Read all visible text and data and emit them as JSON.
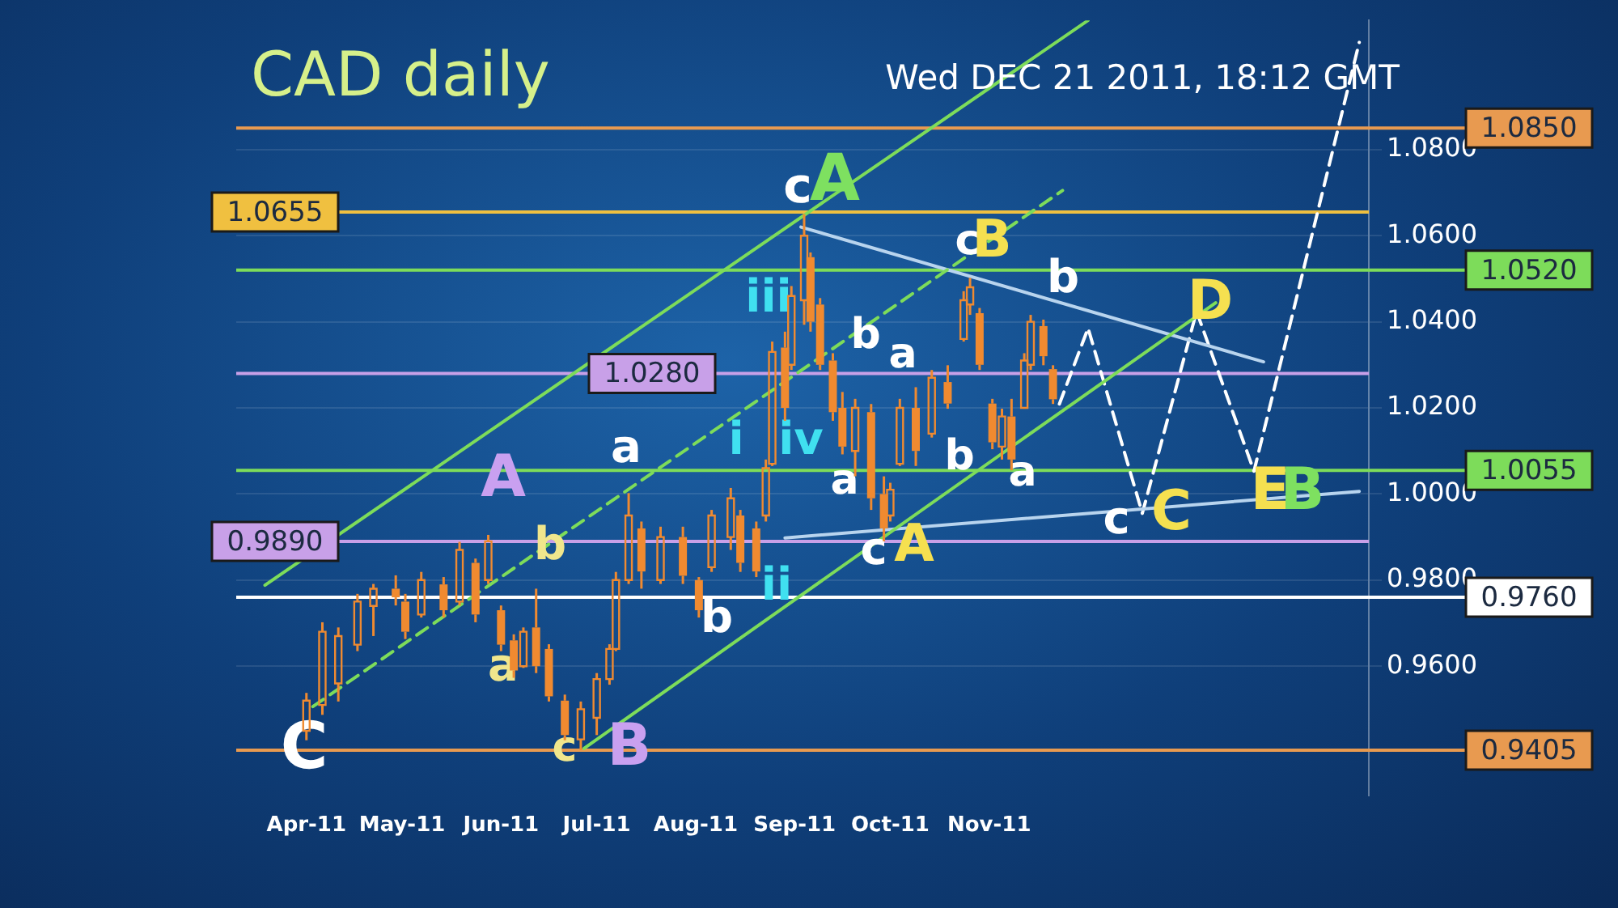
{
  "chart_data": {
    "type": "candlestick",
    "title": "CAD daily",
    "subtitle": "Wed DEC 21 2011, 18:12 GMT",
    "color": "#f08a30",
    "x": [
      "2011-04-01",
      "2011-04-06",
      "2011-04-11",
      "2011-04-17",
      "2011-04-22",
      "2011-04-29",
      "2011-05-02",
      "2011-05-07",
      "2011-05-14",
      "2011-05-19",
      "2011-05-24",
      "2011-05-28",
      "2011-06-01",
      "2011-06-05",
      "2011-06-08",
      "2011-06-12",
      "2011-06-16",
      "2011-06-21",
      "2011-06-26",
      "2011-07-01",
      "2011-07-05",
      "2011-07-07",
      "2011-07-11",
      "2011-07-15",
      "2011-07-21",
      "2011-07-28",
      "2011-08-02",
      "2011-08-06",
      "2011-08-12",
      "2011-08-15",
      "2011-08-20",
      "2011-08-23",
      "2011-08-25",
      "2011-08-29",
      "2011-08-31",
      "2011-09-04",
      "2011-09-06",
      "2011-09-09",
      "2011-09-13",
      "2011-09-16",
      "2011-09-20",
      "2011-09-25",
      "2011-09-29",
      "2011-10-01",
      "2011-10-04",
      "2011-10-09",
      "2011-10-14",
      "2011-10-19",
      "2011-10-24",
      "2011-10-26",
      "2011-10-29",
      "2011-11-02",
      "2011-11-05",
      "2011-11-08",
      "2011-11-12",
      "2011-11-14",
      "2011-11-18",
      "2011-11-21"
    ],
    "ohlc": [
      [
        0.945,
        0.9538,
        0.9428,
        0.952
      ],
      [
        0.951,
        0.9702,
        0.9487,
        0.968
      ],
      [
        0.956,
        0.969,
        0.9518,
        0.967
      ],
      [
        0.965,
        0.9768,
        0.9635,
        0.975
      ],
      [
        0.974,
        0.9791,
        0.967,
        0.978
      ],
      [
        0.978,
        0.9811,
        0.9741,
        0.976
      ],
      [
        0.975,
        0.9768,
        0.9663,
        0.968
      ],
      [
        0.972,
        0.9819,
        0.9713,
        0.98
      ],
      [
        0.979,
        0.9807,
        0.9713,
        0.973
      ],
      [
        0.975,
        0.9889,
        0.9741,
        0.987
      ],
      [
        0.984,
        0.985,
        0.9702,
        0.972
      ],
      [
        0.98,
        0.9905,
        0.9791,
        0.989
      ],
      [
        0.973,
        0.9741,
        0.9635,
        0.965
      ],
      [
        0.966,
        0.9674,
        0.9573,
        0.959
      ],
      [
        0.96,
        0.969,
        0.9596,
        0.968
      ],
      [
        0.969,
        0.978,
        0.9584,
        0.96
      ],
      [
        0.964,
        0.9651,
        0.9518,
        0.953
      ],
      [
        0.952,
        0.9534,
        0.9428,
        0.944
      ],
      [
        0.943,
        0.9518,
        0.9405,
        0.95
      ],
      [
        0.948,
        0.9584,
        0.944,
        0.957
      ],
      [
        0.957,
        0.9651,
        0.9557,
        0.964
      ],
      [
        0.964,
        0.9819,
        0.9635,
        0.98
      ],
      [
        0.98,
        1.0002,
        0.9791,
        0.995
      ],
      [
        0.992,
        0.9936,
        0.978,
        0.982
      ],
      [
        0.98,
        0.9924,
        0.9791,
        0.99
      ],
      [
        0.99,
        0.9924,
        0.9791,
        0.981
      ],
      [
        0.98,
        0.9807,
        0.9713,
        0.973
      ],
      [
        0.983,
        0.9963,
        0.9819,
        0.995
      ],
      [
        0.99,
        1.0014,
        0.987,
        0.999
      ],
      [
        0.995,
        0.9963,
        0.9819,
        0.984
      ],
      [
        0.992,
        0.9936,
        0.9807,
        0.982
      ],
      [
        0.995,
        1.008,
        0.9936,
        1.006
      ],
      [
        1.007,
        1.0354,
        1.0065,
        1.033
      ],
      [
        1.034,
        1.0377,
        1.017,
        1.02
      ],
      [
        1.03,
        1.0483,
        1.0288,
        1.046
      ],
      [
        1.045,
        1.065,
        1.0393,
        1.06
      ],
      [
        1.055,
        1.0561,
        1.0377,
        1.04
      ],
      [
        1.044,
        1.0455,
        1.0288,
        1.03
      ],
      [
        1.031,
        1.0327,
        1.017,
        1.019
      ],
      [
        1.02,
        1.0237,
        1.0092,
        1.011
      ],
      [
        1.01,
        1.0221,
        1.0041,
        1.02
      ],
      [
        1.019,
        1.0209,
        0.9963,
        0.999
      ],
      [
        1.0,
        1.0041,
        0.989,
        0.992
      ],
      [
        0.995,
        1.0026,
        0.9936,
        1.001
      ],
      [
        1.007,
        1.0221,
        1.0065,
        1.02
      ],
      [
        1.02,
        1.0248,
        1.0065,
        1.01
      ],
      [
        1.014,
        1.0288,
        1.0131,
        1.027
      ],
      [
        1.026,
        1.0299,
        1.0198,
        1.021
      ],
      [
        1.036,
        1.0471,
        1.0354,
        1.045
      ],
      [
        1.044,
        1.0502,
        1.0416,
        1.048
      ],
      [
        1.042,
        1.0432,
        1.0288,
        1.03
      ],
      [
        1.021,
        1.0221,
        1.0104,
        1.012
      ],
      [
        1.011,
        1.0198,
        1.008,
        1.018
      ],
      [
        1.018,
        1.0221,
        1.0055,
        1.008
      ],
      [
        1.02,
        1.0327,
        1.0198,
        1.031
      ],
      [
        1.03,
        1.0416,
        1.0288,
        1.04
      ],
      [
        1.039,
        1.0405,
        1.0299,
        1.032
      ],
      [
        1.029,
        1.0299,
        1.0209,
        1.022
      ]
    ],
    "series": [
      {
        "type": "line",
        "color": "#7ddc5a",
        "x": [
          "2011-03-19",
          "2011-12-02"
        ],
        "values": [
          0.9788,
          1.11
        ]
      },
      {
        "type": "line",
        "color": "#7ddc5a",
        "line_style": "dashed",
        "x": [
          "2011-04-03",
          "2011-11-24"
        ],
        "values": [
          0.9506,
          1.0705
        ]
      },
      {
        "type": "line",
        "color": "#7ddc5a",
        "x": [
          "2011-06-27",
          "2012-01-11"
        ],
        "values": [
          0.9409,
          1.0444
        ]
      },
      {
        "type": "line",
        "color": "#b8d4ee",
        "x": [
          "2011-09-03",
          "2012-01-26"
        ],
        "values": [
          1.062,
          1.0307
        ]
      },
      {
        "type": "line",
        "color": "#b8d4ee",
        "x": [
          "2011-08-29",
          "2012-02-25"
        ],
        "values": [
          0.9898,
          1.0006
        ]
      },
      {
        "type": "line",
        "color": "#ffffff",
        "line_style": "dashed",
        "x": [
          "2011-11-23",
          "2011-12-02",
          "2011-12-19",
          "2012-01-05",
          "2012-01-23",
          "2012-02-25"
        ],
        "values": [
          1.0209,
          1.0385,
          0.9955,
          1.0424,
          1.0053,
          1.1049
        ]
      }
    ],
    "xlim": [
      "2011-03-10",
      "2012-02-28"
    ],
    "xticks": [
      {
        "value": "2011-04-01",
        "label": "Apr-11"
      },
      {
        "value": "2011-05-01",
        "label": "May-11"
      },
      {
        "value": "2011-06-01",
        "label": "Jun-11"
      },
      {
        "value": "2011-07-01",
        "label": "Jul-11"
      },
      {
        "value": "2011-08-01",
        "label": "Aug-11"
      },
      {
        "value": "2011-09-01",
        "label": "Sep-11"
      },
      {
        "value": "2011-10-01",
        "label": "Oct-11"
      },
      {
        "value": "2011-11-01",
        "label": "Nov-11"
      }
    ],
    "ylim": [
      0.93,
      1.11
    ],
    "yticks": [
      {
        "value": 0.96,
        "label": "0.9600"
      },
      {
        "value": 0.98,
        "label": "0.9800"
      },
      {
        "value": 1.0,
        "label": "1.0000"
      },
      {
        "value": 1.02,
        "label": "1.0200"
      },
      {
        "value": 1.04,
        "label": "1.0400"
      },
      {
        "value": 1.06,
        "label": "1.0600"
      },
      {
        "value": 1.08,
        "label": "1.0800"
      }
    ],
    "grid": "y",
    "ref_lines": [
      {
        "axis": "y",
        "value": 1.085,
        "label": "1.0850",
        "color": "#e89a50"
      },
      {
        "axis": "y",
        "value": 1.0655,
        "label": "1.0655",
        "color": "#f0c040"
      },
      {
        "axis": "y",
        "value": 1.052,
        "label": "1.0520",
        "color": "#7ddc5a"
      },
      {
        "axis": "y",
        "value": 1.028,
        "label": "1.0280",
        "color": "#c8a0e8"
      },
      {
        "axis": "y",
        "value": 1.0055,
        "label": "1.0055",
        "color": "#7ddc5a"
      },
      {
        "axis": "y",
        "value": 0.989,
        "label": "0.9890",
        "color": "#c8a0e8"
      },
      {
        "axis": "y",
        "value": 0.976,
        "label": "0.9760",
        "color": "#ffffff"
      },
      {
        "axis": "y",
        "value": 0.9405,
        "label": "0.9405",
        "color": "#e89a50"
      }
    ],
    "annotations": [
      "C",
      "A",
      "b",
      "a",
      "c",
      "B",
      "a",
      "b",
      "i",
      "ii",
      "iii",
      "iv",
      "c",
      "A",
      "b",
      "a",
      "a",
      "c",
      "A",
      "b",
      "a",
      "c",
      "B",
      "b",
      "D",
      "c",
      "C",
      "E",
      "B"
    ],
    "legend": false,
    "marker": "none"
  }
}
